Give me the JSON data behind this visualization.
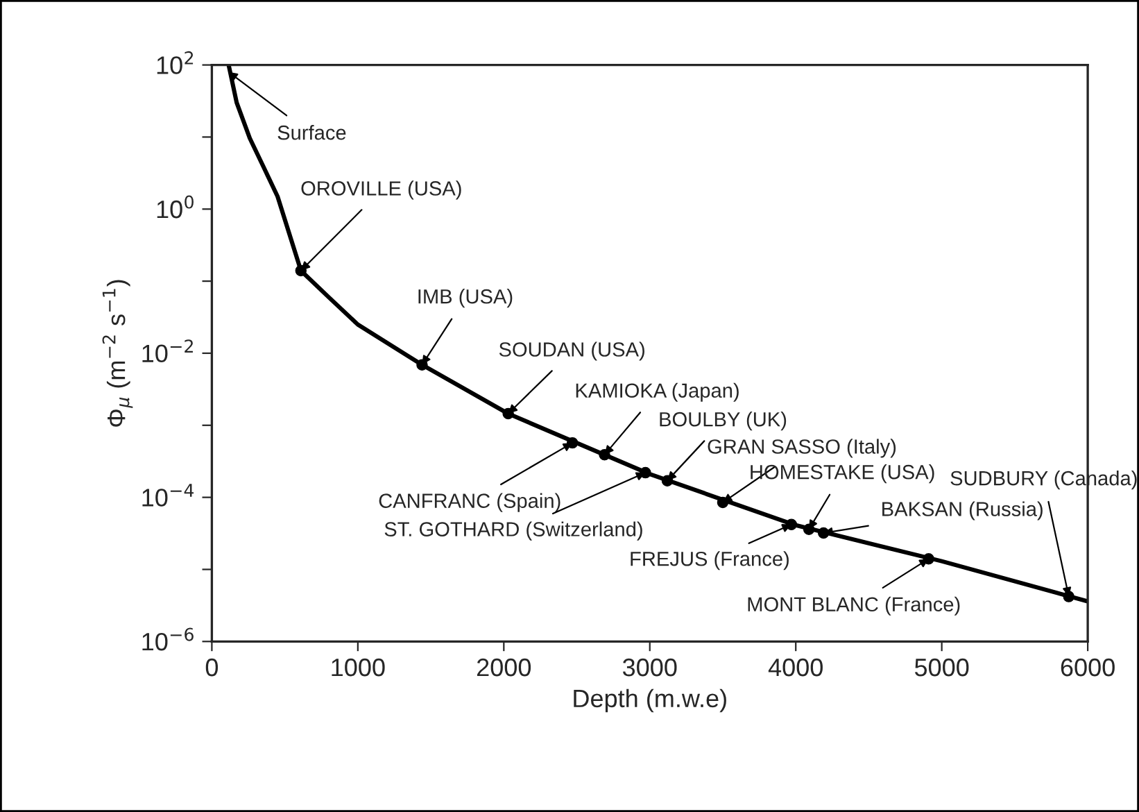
{
  "chart_data": {
    "type": "line",
    "xlabel": "Depth (m.w.e)",
    "ylabel": "Φ$_{μ}$ (m$^{−2}$ s$^{−1}$)",
    "log": "y",
    "xlim": [
      0,
      6000
    ],
    "xticks": [
      0,
      1000,
      2000,
      3000,
      4000,
      5000,
      6000
    ],
    "ylim": [
      1e-06,
      100
    ],
    "yticks": [
      {
        "value": 1e-06,
        "label": "10$^{−6}$"
      },
      {
        "value": 1e-05,
        "label": null
      },
      {
        "value": 0.0001,
        "label": "10$^{−4}$"
      },
      {
        "value": 0.001,
        "label": null
      },
      {
        "value": 0.01,
        "label": "10$^{−2}$"
      },
      {
        "value": 0.1,
        "label": null
      },
      {
        "value": 1,
        "label": "10$^{0}$"
      },
      {
        "value": 10,
        "label": null
      },
      {
        "value": 100,
        "label": "10$^{2}$"
      }
    ],
    "grid": false,
    "legend": false,
    "series": [
      {
        "color": "#000000",
        "x": [
          115,
          170,
          260,
          350,
          450,
          610,
          800,
          1000,
          1440,
          2030,
          3000,
          4000,
          5000,
          6000
        ],
        "values": [
          100,
          30,
          9.6,
          4,
          1.5,
          0.14,
          0.06,
          0.025,
          0.0069,
          0.00145,
          0.00021,
          4.1e-05,
          1.3e-05,
          3.6e-06
        ]
      },
      {
        "type": "scatter",
        "marker": "circle",
        "color": "#000000",
        "x": [
          610,
          1440,
          2030,
          2470,
          2690,
          2970,
          3120,
          3500,
          3970,
          4090,
          4190,
          4910,
          5870
        ],
        "values": [
          0.14,
          0.0069,
          0.00145,
          0.00057,
          0.00039,
          0.00022,
          0.00017,
          8.5e-05,
          4.2e-05,
          3.6e-05,
          3.2e-05,
          1.4e-05,
          4.2e-06
        ]
      }
    ],
    "annotations": [
      {
        "text": "Surface",
        "x": 114,
        "y": 80
      },
      {
        "text": "OROVILLE (USA)",
        "x": 610,
        "y": 0.14
      },
      {
        "text": "IMB (USA)",
        "x": 1440,
        "y": 0.0069
      },
      {
        "text": "SOUDAN (USA)",
        "x": 2030,
        "y": 0.00145
      },
      {
        "text": "KAMIOKA (Japan)",
        "x": 2690,
        "y": 0.00039
      },
      {
        "text": "BOULBY (UK)",
        "x": 3120,
        "y": 0.00017
      },
      {
        "text": "GRAN SASSO (Italy)",
        "x": 3500,
        "y": 8.5e-05
      },
      {
        "text": "HOMESTAKE (USA)",
        "x": 4090,
        "y": 3.6e-05
      },
      {
        "text": "SUDBURY (Canada)",
        "x": 5870,
        "y": 4.2e-06
      },
      {
        "text": "BAKSAN (Russia)",
        "x": 4190,
        "y": 3.2e-05
      },
      {
        "text": "CANFRANC (Spain)",
        "x": 2470,
        "y": 0.00057
      },
      {
        "text": "ST. GOTHARD (Switzerland)",
        "x": 2970,
        "y": 0.00022
      },
      {
        "text": "FREJUS (France)",
        "x": 3970,
        "y": 4.2e-05
      },
      {
        "text": "MONT BLANC (France)",
        "x": 4910,
        "y": 1.4e-05
      }
    ]
  }
}
